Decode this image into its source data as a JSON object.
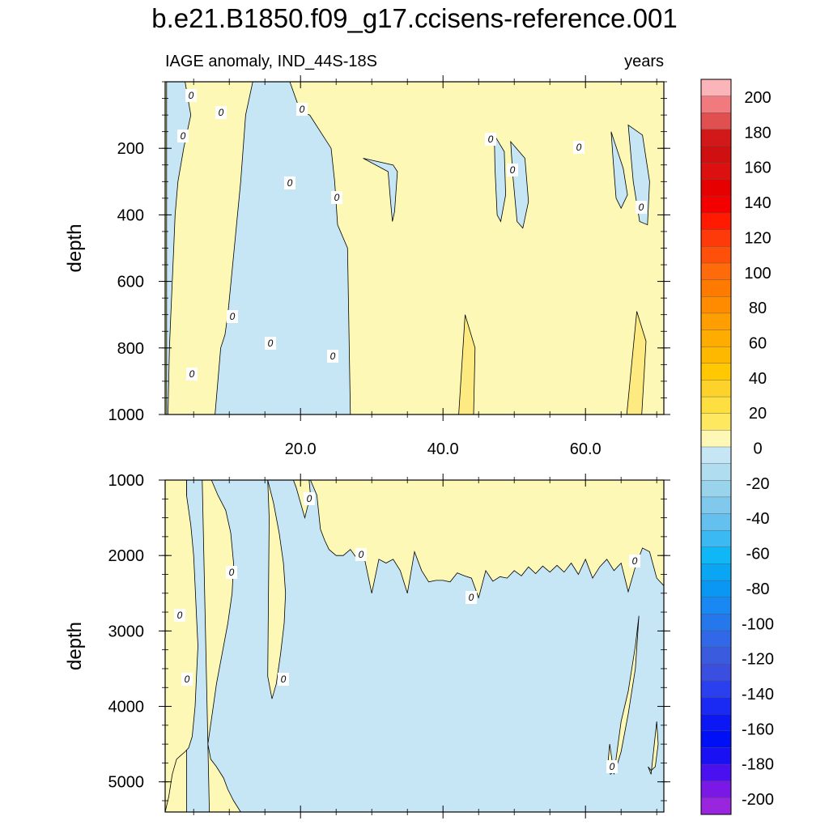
{
  "title": "b.e21.B1850.f09_g17.ccisens-reference.001",
  "subtitle_left": "IAGE anomaly, IND_44S-18S",
  "subtitle_right": "years",
  "colors": {
    "zero_to_20": "#fdf8b6",
    "band_20_40": "#fdeb82",
    "neg_0_to_20": "#c6e6f5"
  },
  "chart_data": [
    {
      "type": "heatmap",
      "panel": "upper",
      "xlabel": "",
      "ylabel": "depth",
      "xlim": [
        1,
        71
      ],
      "ylim": [
        1000,
        0
      ],
      "x_ticks": [
        20.0,
        40.0,
        60.0
      ],
      "x_tick_labels": [
        "20.0",
        "40.0",
        "60.0"
      ],
      "y_ticks": [
        200,
        400,
        600,
        800,
        1000
      ],
      "y_tick_labels": [
        "200",
        "400",
        "600",
        "800",
        "1000"
      ],
      "contour_labels": [
        "0",
        "0",
        "0",
        "0",
        "0",
        "0",
        "0",
        "0",
        "0",
        "0",
        "0",
        "0",
        "0",
        "0",
        "0"
      ],
      "regions": [
        {
          "class": "negative",
          "range": "0 to -20",
          "x": [
            1.2,
            1.4,
            3.8,
            4.6,
            3.6,
            2.8,
            2.4,
            2.2,
            2.0,
            1.8,
            1.6,
            1.5,
            1.4,
            1.2
          ],
          "y": [
            0,
            0,
            0,
            100,
            200,
            300,
            400,
            500,
            600,
            700,
            800,
            900,
            1000,
            1000
          ]
        },
        {
          "class": "negative",
          "range": "0 to -20",
          "x": [
            8.0,
            11.2,
            12.8,
            13.5,
            15.4,
            17.0,
            20.0,
            22.5,
            23.8,
            25.0,
            26.2,
            27.0,
            26.6,
            25.2,
            24.8,
            24.3,
            21.3,
            20.0,
            18.5,
            16.5,
            16.0,
            13.3,
            12.3,
            11.6,
            10.7,
            9.8,
            9.4,
            8.8,
            8.4,
            8.0
          ],
          "y": [
            1000,
            1000,
            1000,
            1000,
            1000,
            1000,
            1000,
            1000,
            1000,
            1000,
            1000,
            1000,
            500,
            430,
            300,
            200,
            100,
            90,
            0,
            0,
            0,
            0,
            100,
            300,
            500,
            700,
            760,
            800,
            900,
            1000
          ]
        },
        {
          "class": "negative",
          "range": "0 to -20",
          "x": [
            28.8,
            33.0,
            33.6,
            33.2,
            32.9,
            32.6,
            32.3
          ],
          "y": [
            230,
            250,
            270,
            390,
            420,
            350,
            270
          ]
        },
        {
          "class": "negative",
          "range": "0 to -20",
          "x": [
            47.2,
            48.6,
            48.8,
            48.1,
            47.6,
            47.3
          ],
          "y": [
            160,
            210,
            340,
            420,
            400,
            260
          ]
        },
        {
          "class": "negative",
          "range": "0 to -20",
          "x": [
            49.5,
            51.5,
            52.0,
            51.2,
            50.4,
            49.8
          ],
          "y": [
            180,
            230,
            360,
            440,
            420,
            280
          ]
        },
        {
          "class": "negative",
          "range": "0 to -20",
          "x": [
            63.6,
            65.3,
            65.9,
            65.0,
            64.3,
            63.9
          ],
          "y": [
            150,
            260,
            340,
            380,
            350,
            240
          ]
        },
        {
          "class": "negative",
          "range": "0 to -20",
          "x": [
            66.0,
            68.0,
            69.0,
            68.7,
            67.6,
            66.7
          ],
          "y": [
            130,
            160,
            300,
            430,
            420,
            300
          ]
        }
      ],
      "positive_bands": [
        {
          "range": "20 to 40",
          "x": [
            42.2,
            43.1,
            44.5,
            44.3,
            42.5
          ],
          "y": [
            1000,
            700,
            800,
            1000,
            1000
          ]
        },
        {
          "range": "20 to 40",
          "x": [
            65.8,
            67.2,
            68.5,
            67.9,
            66.0
          ],
          "y": [
            1000,
            690,
            780,
            1000,
            1000
          ]
        }
      ]
    },
    {
      "type": "heatmap",
      "panel": "lower",
      "xlabel": "",
      "ylabel": "depth",
      "xlim": [
        1,
        71
      ],
      "ylim": [
        5400,
        1000
      ],
      "x_ticks": [
        20.0,
        40.0,
        60.0
      ],
      "x_tick_labels": [
        "",
        "",
        ""
      ],
      "y_ticks": [
        1000,
        2000,
        3000,
        4000,
        5000
      ],
      "y_tick_labels": [
        "1000",
        "2000",
        "3000",
        "4000",
        "5000"
      ],
      "contour_labels": [
        "0",
        "0",
        "0",
        "0",
        "0",
        "0",
        "0",
        "0",
        "0",
        "0"
      ],
      "regions": [
        {
          "class": "negative",
          "range": "0 to -20",
          "x": [
            4.0,
            6.5,
            7.8,
            8.8,
            9.6,
            9.6,
            9.4,
            9.2,
            9.5,
            10.0,
            11.0,
            12.0,
            12.8,
            13.6,
            14.6,
            15.4,
            15.8,
            16.2,
            16.8,
            17.4,
            17.8,
            18.3,
            18.6,
            19.0,
            19.5,
            20.2,
            21.4,
            22.8,
            23.8,
            25.0,
            26.2,
            27.5,
            28.8,
            30.0,
            31.2,
            32.3,
            33.4,
            34.6,
            35.8,
            37.0,
            38.2,
            39.4,
            40.6,
            41.6,
            42.5,
            43.3,
            44.2,
            45.2,
            46.2,
            47.2,
            48.2,
            49.2,
            50.4,
            51.6,
            53.0,
            54.3,
            55.6,
            56.8,
            58.0,
            59.2,
            60.4,
            61.6,
            62.8,
            64.0,
            65.2,
            66.2,
            67.4,
            68.5,
            69.6,
            70.4,
            71.0,
            71.0,
            70.0,
            69.0,
            68.0,
            67.0,
            66.0,
            64.0,
            62.0,
            60.0,
            58.0,
            56.0,
            54.0,
            52.0,
            50.0,
            48.0,
            46.0,
            44.0,
            42.0,
            40.0,
            38.0,
            36.0,
            34.0,
            32.0,
            30.0,
            28.0,
            26.0,
            24.0,
            22.0,
            20.0,
            18.0,
            16.0,
            14.0,
            12.0,
            10.5,
            9.0,
            8.0,
            7.2,
            6.5,
            5.8,
            5.2,
            4.8,
            4.4,
            4.1,
            4.0
          ],
          "y": [
            1000,
            1000,
            1000,
            1000,
            1000,
            1000,
            1000,
            1000,
            1000,
            1000,
            1000,
            1000,
            1000,
            1000,
            1000,
            1000,
            1000,
            1000,
            1000,
            1000,
            1000,
            1000,
            1000,
            1000,
            1000,
            1000,
            1000,
            1000,
            1000,
            1000,
            1000,
            1000,
            1000,
            1000,
            1000,
            1000,
            1000,
            1000,
            1000,
            1000,
            1000,
            1000,
            1000,
            1000,
            1000,
            1000,
            1000,
            1000,
            1000,
            1000,
            1000,
            1000,
            1000,
            1000,
            1000,
            1000,
            1000,
            1000,
            1000,
            1000,
            1000,
            1000,
            1000,
            1000,
            1000,
            1000,
            1000,
            1000,
            1000,
            1000,
            1000,
            5400,
            5400,
            5400,
            5400,
            5400,
            5400,
            5400,
            5400,
            5400,
            5400,
            5400,
            5400,
            5400,
            5400,
            5400,
            5400,
            5400,
            5400,
            5400,
            5400,
            5400,
            5400,
            5400,
            5400,
            5400,
            5400,
            5400,
            5400,
            5400,
            5400,
            5400,
            5400,
            5400,
            5400,
            5400,
            5400,
            5400,
            5400,
            5400,
            5400,
            5400,
            5400,
            5400,
            5400
          ]
        }
      ],
      "positive_bands": [
        {
          "range": "0 to 20",
          "x": [
            1.0,
            4.0,
            4.0,
            4.6,
            5.0,
            5.2,
            5.4,
            5.6,
            5.4,
            5.2,
            4.8,
            4.3,
            3.8,
            3.2,
            2.6,
            2.0,
            1.5,
            1.0
          ],
          "y": [
            1000,
            1000,
            1200,
            1600,
            2000,
            2400,
            2800,
            3200,
            3600,
            4000,
            4400,
            4550,
            4600,
            4650,
            4700,
            4900,
            5200,
            5400
          ]
        },
        {
          "range": "0 to 20",
          "x": [
            6.2,
            7.5,
            8.4,
            9.5,
            10.2,
            10.6,
            10.4,
            9.8,
            9.0,
            8.2,
            7.6,
            7.0,
            7.4,
            8.2,
            9.2,
            9.8,
            10.6,
            11.6,
            13.0,
            11.0,
            9.0,
            7.2
          ],
          "y": [
            1000,
            1000,
            1200,
            1400,
            1700,
            2100,
            2500,
            2900,
            3300,
            3700,
            4100,
            4500,
            4700,
            4800,
            4950,
            5100,
            5250,
            5400,
            5400,
            5400,
            5400,
            5400
          ]
        },
        {
          "range": "0 to 20",
          "x": [
            15.4,
            16.2,
            17.0,
            17.6,
            17.9,
            17.7,
            17.2,
            16.6,
            16.0,
            15.4,
            15.6
          ],
          "y": [
            1000,
            1300,
            1700,
            2100,
            2500,
            2900,
            3300,
            3700,
            3900,
            3600,
            1500
          ]
        },
        {
          "range": "0 to 20",
          "x": [
            19.0,
            20.3,
            21.2,
            21.4,
            20.6,
            20.0,
            19.4
          ],
          "y": [
            1000,
            1000,
            1000,
            1200,
            1500,
            1300,
            1100
          ]
        },
        {
          "range": "0 to 20",
          "x": [
            21.4,
            71.0,
            71.0,
            70.0,
            69.0,
            68.0,
            67.0,
            66.0,
            65.0,
            64.0,
            63.0,
            62.0,
            61.0,
            60.0,
            59.0,
            58.0,
            57.0,
            56.0,
            55.0,
            54.0,
            53.0,
            52.0,
            51.0,
            50.0,
            49.0,
            48.0,
            47.0,
            46.0,
            45.0,
            44.0,
            43.0,
            42.0,
            41.0,
            40.0,
            39.0,
            38.0,
            37.0,
            36.0,
            35.0,
            34.0,
            33.0,
            32.0,
            31.0,
            30.0,
            29.0,
            28.0,
            27.0,
            26.0,
            25.0,
            24.0,
            23.4,
            22.8,
            22.3
          ],
          "y": [
            1000,
            1000,
            2400,
            2300,
            1950,
            1900,
            2150,
            2480,
            2100,
            2200,
            2050,
            2150,
            2300,
            2050,
            2250,
            2100,
            2220,
            2130,
            2220,
            2140,
            2240,
            2150,
            2270,
            2200,
            2300,
            2280,
            2340,
            2200,
            2560,
            2300,
            2270,
            2230,
            2350,
            2330,
            2330,
            2350,
            2200,
            1950,
            2500,
            2200,
            2050,
            2100,
            2050,
            2500,
            2050,
            2050,
            1920,
            2000,
            2000,
            1920,
            1800,
            1650,
            1200
          ]
        },
        {
          "range": "0 to 20",
          "x": [
            64.0,
            65.0,
            66.0,
            66.5,
            67.0,
            67.5,
            67.0,
            66.0,
            65.0,
            64.2,
            63.5,
            63.2,
            63.4
          ],
          "y": [
            4900,
            4200,
            3800,
            3500,
            3200,
            2800,
            3500,
            4100,
            4600,
            4850,
            4900,
            4700,
            4500
          ]
        },
        {
          "range": "0 to 20",
          "x": [
            69.2,
            70.0,
            70.2,
            69.8,
            69.2,
            68.8
          ],
          "y": [
            4900,
            4200,
            4500,
            4800,
            4850,
            4800
          ]
        }
      ]
    }
  ],
  "colorbar": {
    "labels": [
      "200",
      "180",
      "160",
      "140",
      "120",
      "100",
      "80",
      "60",
      "40",
      "20",
      "0",
      "-20",
      "-40",
      "-60",
      "-80",
      "-100",
      "-120",
      "-140",
      "-160",
      "-180",
      "-200"
    ],
    "colors": [
      "#fbb4b8",
      "#f07a7e",
      "#e05050",
      "#d21818",
      "#d01010",
      "#dd1010",
      "#e60000",
      "#f50000",
      "#ff1a00",
      "#ff3a0a",
      "#ff500a",
      "#ff6a0a",
      "#ff7a00",
      "#ff8c00",
      "#ff9e00",
      "#ffac00",
      "#ffb800",
      "#ffc800",
      "#fdd22a",
      "#fde040",
      "#fde860",
      "#fdf8b6",
      "#c6e6f5",
      "#b0ddef",
      "#9ad3ec",
      "#80c8ec",
      "#64c0ee",
      "#3bb9f3",
      "#10b7f7",
      "#0aa6f4",
      "#0a97f4",
      "#1a88f2",
      "#2478ec",
      "#3068e8",
      "#3a5bde",
      "#3a4ee0",
      "#2a40ee",
      "#1a2af2",
      "#0c18f4",
      "#0010f6",
      "#1a10f4",
      "#4a10f0",
      "#7a18e6",
      "#9a25de"
    ]
  }
}
